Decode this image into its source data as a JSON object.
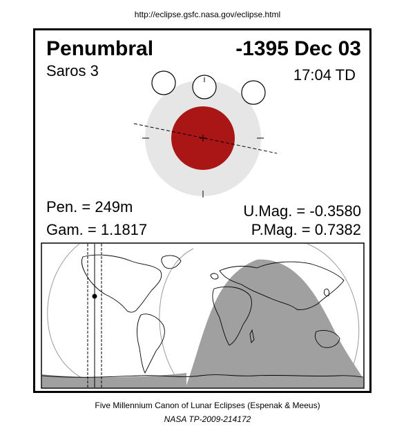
{
  "header": {
    "url": "http://eclipse.gsfc.nasa.gov/eclipse.html"
  },
  "eclipse": {
    "type": "Penumbral",
    "date": "-1395 Dec 03",
    "saros": "Saros   3",
    "time": "17:04 TD",
    "pen_duration": "Pen. = 249m",
    "gamma": "Gam. = 1.1817",
    "umbral_mag": "U.Mag. = -0.3580",
    "penumbral_mag": "P.Mag. = 0.7382"
  },
  "colors": {
    "umbra": "#aa1515",
    "penumbra": "#e6e6e6",
    "night_region": "#a0a0a0",
    "moon_outline": "#000000"
  },
  "footer": {
    "line1": "Five Millennium Canon of Lunar Eclipses (Espenak & Meeus)",
    "line2": "NASA TP-2009-214172"
  }
}
